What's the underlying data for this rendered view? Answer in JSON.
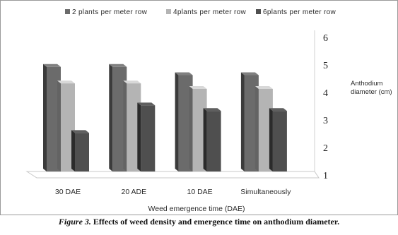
{
  "chart_data": {
    "type": "bar",
    "style": "3d-clustered-column",
    "categories": [
      "30 DAE",
      "20 ADE",
      "10 DAE",
      "Simultaneously"
    ],
    "series": [
      {
        "name": "2 plants per meter row",
        "values": [
          4.8,
          4.8,
          4.5,
          4.5
        ],
        "color": "#6b6b6b"
      },
      {
        "name": "4plants per meter row",
        "values": [
          4.2,
          4.2,
          4.0,
          4.0
        ],
        "color": "#b4b4b4"
      },
      {
        "name": "6plants per meter row",
        "values": [
          2.4,
          3.4,
          3.2,
          3.2
        ],
        "color": "#4f4f4f"
      }
    ],
    "xlabel": "Weed emergence time (DAE)",
    "ylabel_lines": [
      "Anthodium",
      "diameter (cm)"
    ],
    "ylim": [
      1,
      6
    ],
    "yticks": [
      1,
      2,
      3,
      4,
      5,
      6
    ],
    "yaxis_side": "right",
    "legend_position": "top",
    "grid": false
  },
  "caption": {
    "lead": "Figure 3.",
    "text": " Effects of weed density and emergence time on anthodium diameter."
  }
}
